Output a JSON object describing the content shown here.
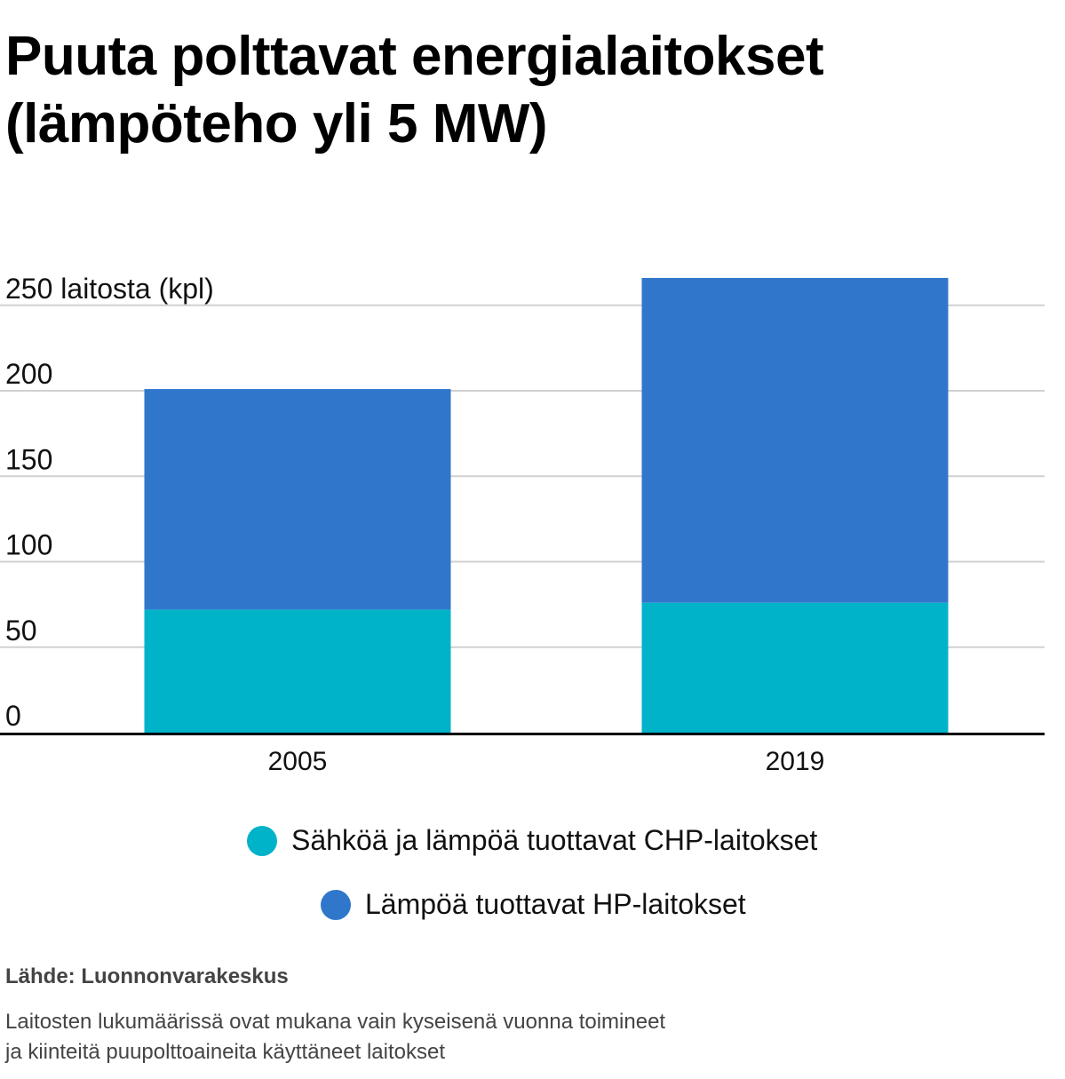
{
  "title": {
    "line1": "Puuta polttavat energialaitokset",
    "line2": "(lämpöteho yli 5 MW)"
  },
  "colors": {
    "chp": "#00b3c9",
    "hp": "#3077cc",
    "grid": "#d0d0d0",
    "axis": "#000000"
  },
  "chart_data": {
    "type": "bar",
    "stacked": true,
    "categories": [
      "2005",
      "2019"
    ],
    "series": [
      {
        "name": "Sähköä ja lämpöä tuottavat CHP-laitokset",
        "values": [
          72,
          76
        ],
        "color": "#00b3c9"
      },
      {
        "name": "Lämpöä tuottavat HP-laitokset",
        "values": [
          129,
          190
        ],
        "color": "#3077cc"
      }
    ],
    "ylim": [
      0,
      250
    ],
    "yticks": [
      0,
      50,
      100,
      150,
      200,
      250
    ],
    "ytick_labels": [
      "0",
      "50",
      "100",
      "150",
      "200",
      "250 laitosta (kpl)"
    ],
    "grid": true,
    "legend_position": "bottom"
  },
  "legend": {
    "chp_label": "Sähköä ja lämpöä tuottavat CHP-laitokset",
    "hp_label": "Lämpöä tuottavat HP-laitokset"
  },
  "footer": {
    "source": "Lähde: Luonnonvarakeskus",
    "note_line1": "Laitosten lukumäärissä ovat mukana vain kyseisenä vuonna toimineet",
    "note_line2": "ja kiinteitä puupolttoaineita käyttäneet laitokset"
  }
}
